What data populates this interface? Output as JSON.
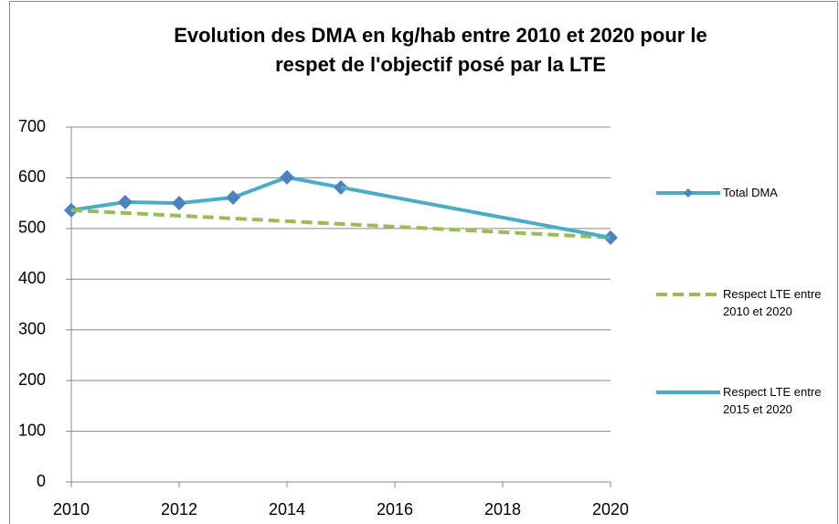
{
  "chart_data": {
    "type": "line",
    "title": [
      "Evolution des DMA en kg/hab entre 2010 et 2020 pour le",
      "respet de l'objectif posé par la LTE"
    ],
    "xlim": [
      2010,
      2020
    ],
    "xticks": [
      2010,
      2012,
      2014,
      2016,
      2018,
      2020
    ],
    "ylim": [
      0,
      700
    ],
    "yticks": [
      0,
      100,
      200,
      300,
      400,
      500,
      600,
      700
    ],
    "grid": true,
    "legend": "right",
    "series": [
      {
        "name": "Total DMA",
        "color": "#4bacc6",
        "marker_color": "#4f81bd",
        "markers": true,
        "dash": false,
        "x": [
          2010,
          2011,
          2012,
          2013,
          2014,
          2015,
          2016,
          2017,
          2018,
          2019,
          2020
        ],
        "values": [
          536,
          552,
          550,
          561,
          601,
          581,
          null,
          null,
          null,
          null,
          482
        ]
      },
      {
        "name": "Respect LTE entre 2010 et 2020",
        "color": "#9bbb59",
        "markers": false,
        "dash": true,
        "x": [
          2010,
          2020
        ],
        "values": [
          536,
          482
        ]
      },
      {
        "name": "Respect LTE entre 2015 et 2020",
        "color": "#4bacc6",
        "markers": false,
        "dash": false,
        "x": [
          2015,
          2020
        ],
        "values": [
          581,
          482
        ]
      }
    ]
  }
}
